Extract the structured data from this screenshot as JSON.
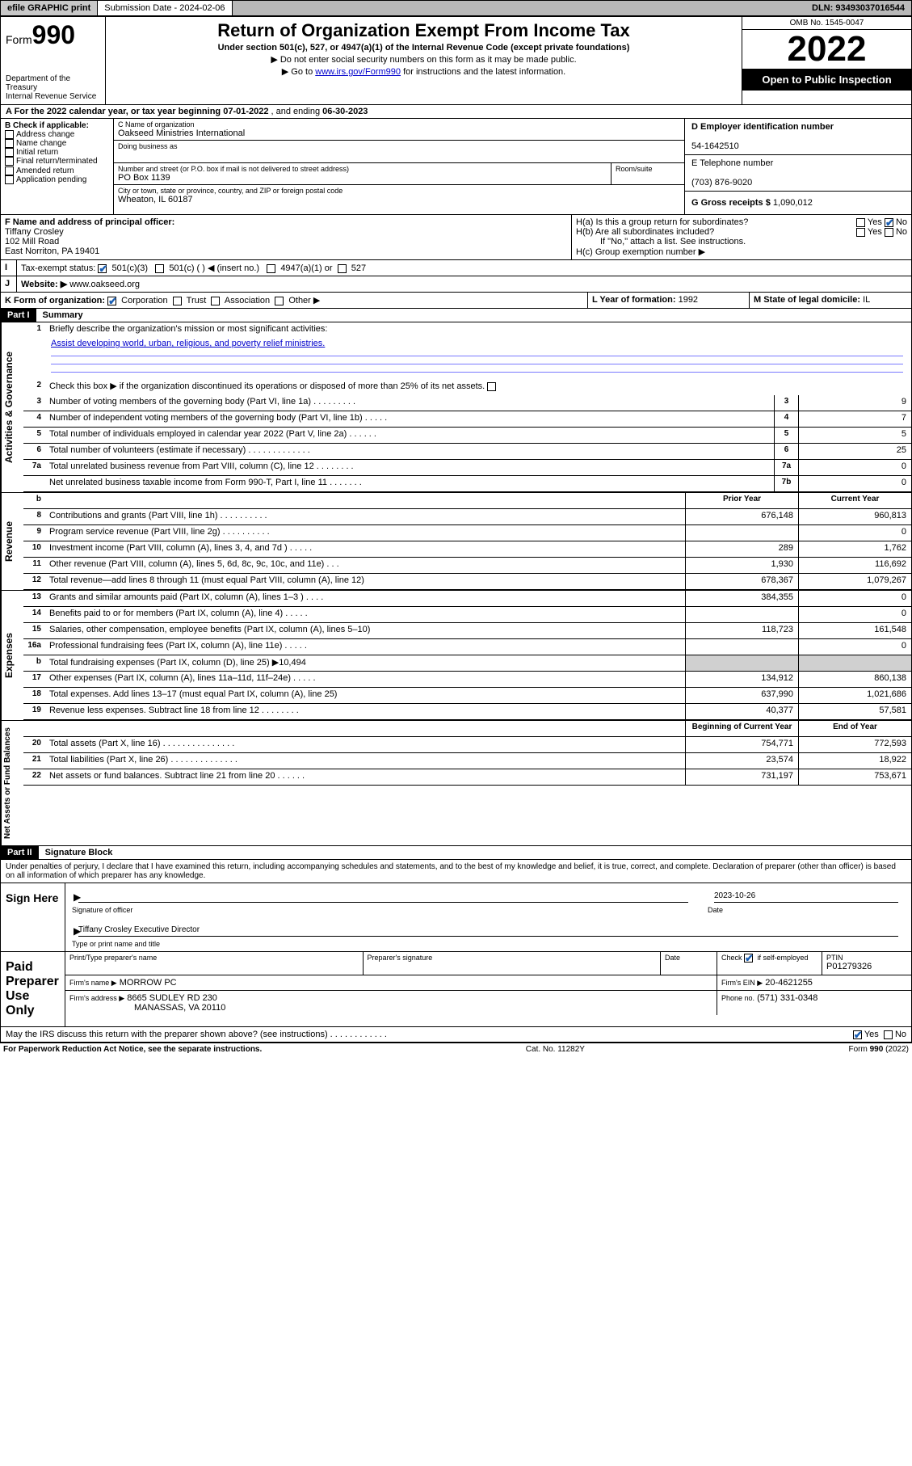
{
  "topbar": {
    "efile": "efile GRAPHIC print",
    "submission_label": "Submission Date - 2024-02-06",
    "dln": "DLN: 93493037016544"
  },
  "header": {
    "form_prefix": "Form",
    "form_num": "990",
    "dept": "Department of the Treasury",
    "irs": "Internal Revenue Service",
    "title": "Return of Organization Exempt From Income Tax",
    "subtitle": "Under section 501(c), 527, or 4947(a)(1) of the Internal Revenue Code (except private foundations)",
    "note1": "▶ Do not enter social security numbers on this form as it may be made public.",
    "note2_pre": "▶ Go to ",
    "note2_link": "www.irs.gov/Form990",
    "note2_post": " for instructions and the latest information.",
    "omb": "OMB No. 1545-0047",
    "year": "2022",
    "open": "Open to Public Inspection"
  },
  "period": {
    "a_text": "A For the 2022 calendar year, or tax year beginning ",
    "begin": "07-01-2022",
    "mid": " , and ending ",
    "end": "06-30-2023"
  },
  "boxB": {
    "label": "B Check if applicable:",
    "opts": [
      "Address change",
      "Name change",
      "Initial return",
      "Final return/terminated",
      "Amended return",
      "Application pending"
    ]
  },
  "boxC": {
    "name_label": "C Name of organization",
    "name": "Oakseed Ministries International",
    "dba_label": "Doing business as",
    "addr_label": "Number and street (or P.O. box if mail is not delivered to street address)",
    "room_label": "Room/suite",
    "addr": "PO Box 1139",
    "city_label": "City or town, state or province, country, and ZIP or foreign postal code",
    "city": "Wheaton, IL  60187"
  },
  "boxD": {
    "label": "D Employer identification number",
    "val": "54-1642510"
  },
  "boxE": {
    "label": "E Telephone number",
    "val": "(703) 876-9020"
  },
  "boxG": {
    "label": "G Gross receipts $",
    "val": "1,090,012"
  },
  "boxF": {
    "label": "F Name and address of principal officer:",
    "name": "Tiffany Crosley",
    "addr1": "102 Mill Road",
    "addr2": "East Norriton, PA  19401"
  },
  "boxH": {
    "a": "H(a)  Is this a group return for subordinates?",
    "b": "H(b)  Are all subordinates included?",
    "b_note": "If \"No,\" attach a list. See instructions.",
    "c": "H(c)  Group exemption number ▶"
  },
  "boxI": {
    "label": "Tax-exempt status:",
    "c3": "501(c)(3)",
    "c": "501(c) (  ) ◀ (insert no.)",
    "a1": "4947(a)(1) or",
    "527": "527"
  },
  "boxJ": {
    "label": "Website: ▶",
    "val": "www.oakseed.org"
  },
  "boxK": {
    "label": "K Form of organization:",
    "corp": "Corporation",
    "trust": "Trust",
    "assoc": "Association",
    "other": "Other ▶"
  },
  "boxL": {
    "label": "L Year of formation:",
    "val": "1992"
  },
  "boxM": {
    "label": "M State of legal domicile:",
    "val": "IL"
  },
  "partI": {
    "hdr": "Part I",
    "title": "Summary",
    "l1_label": "Briefly describe the organization's mission or most significant activities:",
    "l1_text": "Assist developing world, urban, religious, and poverty relief ministries.",
    "l2": "Check this box ▶        if the organization discontinued its operations or disposed of more than 25% of its net assets.",
    "lines_gov": [
      {
        "n": "3",
        "t": "Number of voting members of the governing body (Part VI, line 1a)   .    .    .    .    .    .    .    .    .",
        "box": "3",
        "v": "9"
      },
      {
        "n": "4",
        "t": "Number of independent voting members of the governing body (Part VI, line 1b)  .    .    .    .    .",
        "box": "4",
        "v": "7"
      },
      {
        "n": "5",
        "t": "Total number of individuals employed in calendar year 2022 (Part V, line 2a)   .    .    .    .    .    .",
        "box": "5",
        "v": "5"
      },
      {
        "n": "6",
        "t": "Total number of volunteers (estimate if necessary)   .    .    .    .    .    .    .    .    .    .    .    .    .",
        "box": "6",
        "v": "25"
      },
      {
        "n": "7a",
        "t": "Total unrelated business revenue from Part VIII, column (C), line 12   .    .    .    .    .    .    .    .",
        "box": "7a",
        "v": "0"
      },
      {
        "n": "",
        "t": "Net unrelated business taxable income from Form 990-T, Part I, line 11   .    .    .    .    .    .    .",
        "box": "7b",
        "v": "0"
      }
    ],
    "col_prior": "Prior Year",
    "col_curr": "Current Year",
    "rev": [
      {
        "n": "8",
        "t": "Contributions and grants (Part VIII, line 1h)   .    .    .    .    .    .    .    .    .    .",
        "p": "676,148",
        "c": "960,813"
      },
      {
        "n": "9",
        "t": "Program service revenue (Part VIII, line 2g)   .    .    .    .    .    .    .    .    .    .",
        "p": "",
        "c": "0"
      },
      {
        "n": "10",
        "t": "Investment income (Part VIII, column (A), lines 3, 4, and 7d )   .    .    .    .    .",
        "p": "289",
        "c": "1,762"
      },
      {
        "n": "11",
        "t": "Other revenue (Part VIII, column (A), lines 5, 6d, 8c, 9c, 10c, and 11e)   .    .    .",
        "p": "1,930",
        "c": "116,692"
      },
      {
        "n": "12",
        "t": "Total revenue—add lines 8 through 11 (must equal Part VIII, column (A), line 12)",
        "p": "678,367",
        "c": "1,079,267"
      }
    ],
    "exp": [
      {
        "n": "13",
        "t": "Grants and similar amounts paid (Part IX, column (A), lines 1–3 )   .    .    .    .",
        "p": "384,355",
        "c": "0"
      },
      {
        "n": "14",
        "t": "Benefits paid to or for members (Part IX, column (A), line 4)   .    .    .    .    .",
        "p": "",
        "c": "0"
      },
      {
        "n": "15",
        "t": "Salaries, other compensation, employee benefits (Part IX, column (A), lines 5–10)",
        "p": "118,723",
        "c": "161,548"
      },
      {
        "n": "16a",
        "t": "Professional fundraising fees (Part IX, column (A), line 11e)   .    .    .    .    .",
        "p": "",
        "c": "0"
      },
      {
        "n": "b",
        "t": "Total fundraising expenses (Part IX, column (D), line 25) ▶10,494",
        "p": "shade",
        "c": "shade"
      },
      {
        "n": "17",
        "t": "Other expenses (Part IX, column (A), lines 11a–11d, 11f–24e)   .    .    .    .    .",
        "p": "134,912",
        "c": "860,138"
      },
      {
        "n": "18",
        "t": "Total expenses. Add lines 13–17 (must equal Part IX, column (A), line 25)",
        "p": "637,990",
        "c": "1,021,686"
      },
      {
        "n": "19",
        "t": "Revenue less expenses. Subtract line 18 from line 12   .    .    .    .    .    .    .    .",
        "p": "40,377",
        "c": "57,581"
      }
    ],
    "col_begin": "Beginning of Current Year",
    "col_end": "End of Year",
    "net": [
      {
        "n": "20",
        "t": "Total assets (Part X, line 16)   .    .    .    .    .    .    .    .    .    .    .    .    .    .    .",
        "p": "754,771",
        "c": "772,593"
      },
      {
        "n": "21",
        "t": "Total liabilities (Part X, line 26)   .    .    .    .    .    .    .    .    .    .    .    .    .    .",
        "p": "23,574",
        "c": "18,922"
      },
      {
        "n": "22",
        "t": "Net assets or fund balances. Subtract line 21 from line 20   .    .    .    .    .    .",
        "p": "731,197",
        "c": "753,671"
      }
    ]
  },
  "partII": {
    "hdr": "Part II",
    "title": "Signature Block",
    "decl": "Under penalties of perjury, I declare that I have examined this return, including accompanying schedules and statements, and to the best of my knowledge and belief, it is true, correct, and complete. Declaration of preparer (other than officer) is based on all information of which preparer has any knowledge.",
    "sign_here": "Sign Here",
    "sig_officer": "Signature of officer",
    "sig_date": "2023-10-26",
    "date_label": "Date",
    "officer_name": "Tiffany Crosley  Executive Director",
    "type_label": "Type or print name and title",
    "paid": "Paid Preparer Use Only",
    "prep_name_label": "Print/Type preparer's name",
    "prep_sig_label": "Preparer's signature",
    "check_self": "Check          if self-employed",
    "ptin_label": "PTIN",
    "ptin": "P01279326",
    "firm_name_label": "Firm's name    ▶",
    "firm_name": "MORROW PC",
    "firm_ein_label": "Firm's EIN ▶",
    "firm_ein": "20-4621255",
    "firm_addr_label": "Firm's address ▶",
    "firm_addr1": "8665 SUDLEY RD 230",
    "firm_addr2": "MANASSAS, VA  20110",
    "phone_label": "Phone no.",
    "phone": "(571) 331-0348",
    "discuss": "May the IRS discuss this return with the preparer shown above? (see instructions)   .    .    .    .    .    .    .    .    .    .    .    .",
    "yes": "Yes",
    "no": "No"
  },
  "footer": {
    "pra": "For Paperwork Reduction Act Notice, see the separate instructions.",
    "cat": "Cat. No. 11282Y",
    "form": "Form 990 (2022)"
  }
}
